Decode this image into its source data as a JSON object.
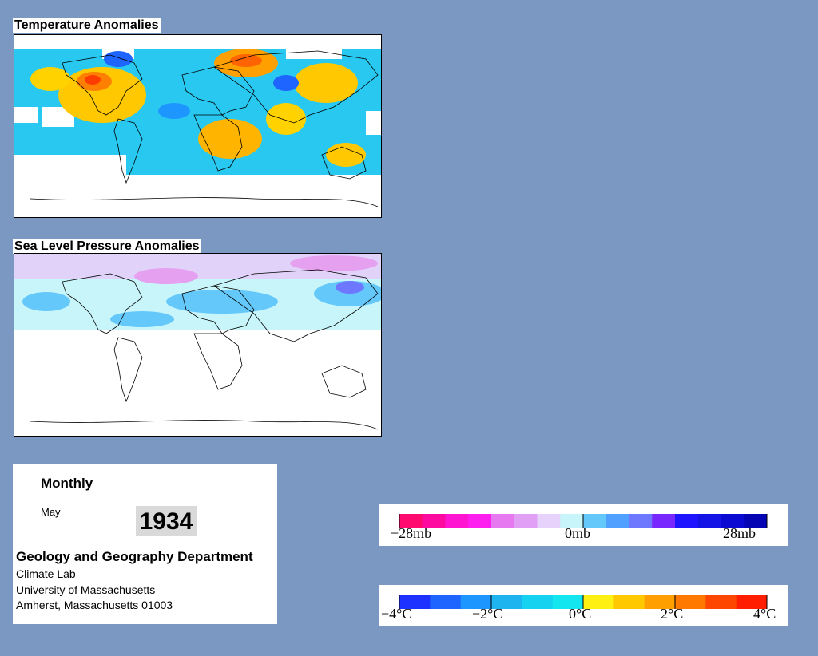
{
  "temperature_map": {
    "title": "Temperature Anomalies"
  },
  "pressure_map": {
    "title": "Sea Level Pressure Anomalies"
  },
  "info": {
    "period": "Monthly",
    "month": "May",
    "year": "1934",
    "department": "Geology and Geography Department",
    "lines": [
      "Climate Lab",
      "University of Massachusetts",
      "Amherst, Massachusetts 01003"
    ]
  },
  "pressure_legend": {
    "colors": [
      "#ff0a6e",
      "#ff0aa0",
      "#ff14d2",
      "#ff1ef0",
      "#e678f0",
      "#e1a0f5",
      "#e6d2fa",
      "#c8f5fa",
      "#64c8fa",
      "#50a0ff",
      "#6e78ff",
      "#7828ff",
      "#1e14ff",
      "#1414e6",
      "#0a0ad2",
      "#0505b4"
    ],
    "labels": [
      "−28mb",
      "0mb",
      "28mb"
    ],
    "values": [
      -28,
      0,
      28
    ]
  },
  "temperature_legend": {
    "colors": [
      "#1e32ff",
      "#1e64ff",
      "#1e96ff",
      "#1eb4f0",
      "#14d2f0",
      "#14e6f0",
      "#fff014",
      "#ffc800",
      "#ffa000",
      "#ff7800",
      "#ff4600",
      "#ff1e00"
    ],
    "labels": [
      "−4°C",
      "−2°C",
      "0°C",
      "2°C",
      "4°C"
    ],
    "values": [
      -4,
      -2,
      0,
      2,
      4
    ]
  }
}
